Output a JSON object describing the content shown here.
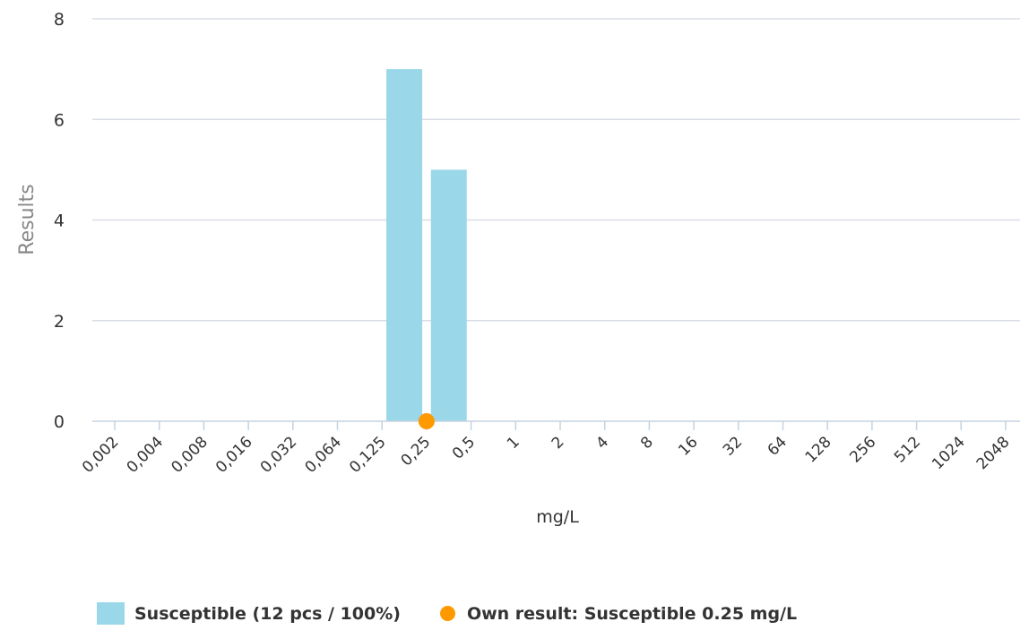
{
  "chart_data": {
    "type": "bar",
    "categories": [
      "0,002",
      "0,004",
      "0,008",
      "0,016",
      "0,032",
      "0,064",
      "0,125",
      "0,25",
      "0,5",
      "1",
      "2",
      "4",
      "8",
      "16",
      "32",
      "64",
      "128",
      "256",
      "512",
      "1024",
      "2048"
    ],
    "series": [
      {
        "name": "Susceptible (12 pcs / 100%)",
        "values": [
          0,
          0,
          0,
          0,
          0,
          0,
          7,
          5,
          0,
          0,
          0,
          0,
          0,
          0,
          0,
          0,
          0,
          0,
          0,
          0,
          0
        ]
      }
    ],
    "own_result": {
      "name": "Own result: Susceptible 0.25 mg/L",
      "category": "0,25",
      "value": 0
    },
    "xlabel": "mg/L",
    "ylabel": "Results",
    "ylim": [
      0,
      8
    ],
    "yticks": [
      0,
      2,
      4,
      6,
      8
    ],
    "grid": true,
    "legend_position": "bottom-left",
    "colors": {
      "bar": "#9ad8e9",
      "own_result": "#ff9900",
      "grid": "#d8dde6",
      "axis": "#c5d2e0",
      "text": "#333333",
      "ylabel": "#888888"
    }
  },
  "legend": {
    "susceptible_label": "Susceptible (12 pcs / 100%)",
    "own_result_label": "Own result: Susceptible 0.25 mg/L"
  }
}
